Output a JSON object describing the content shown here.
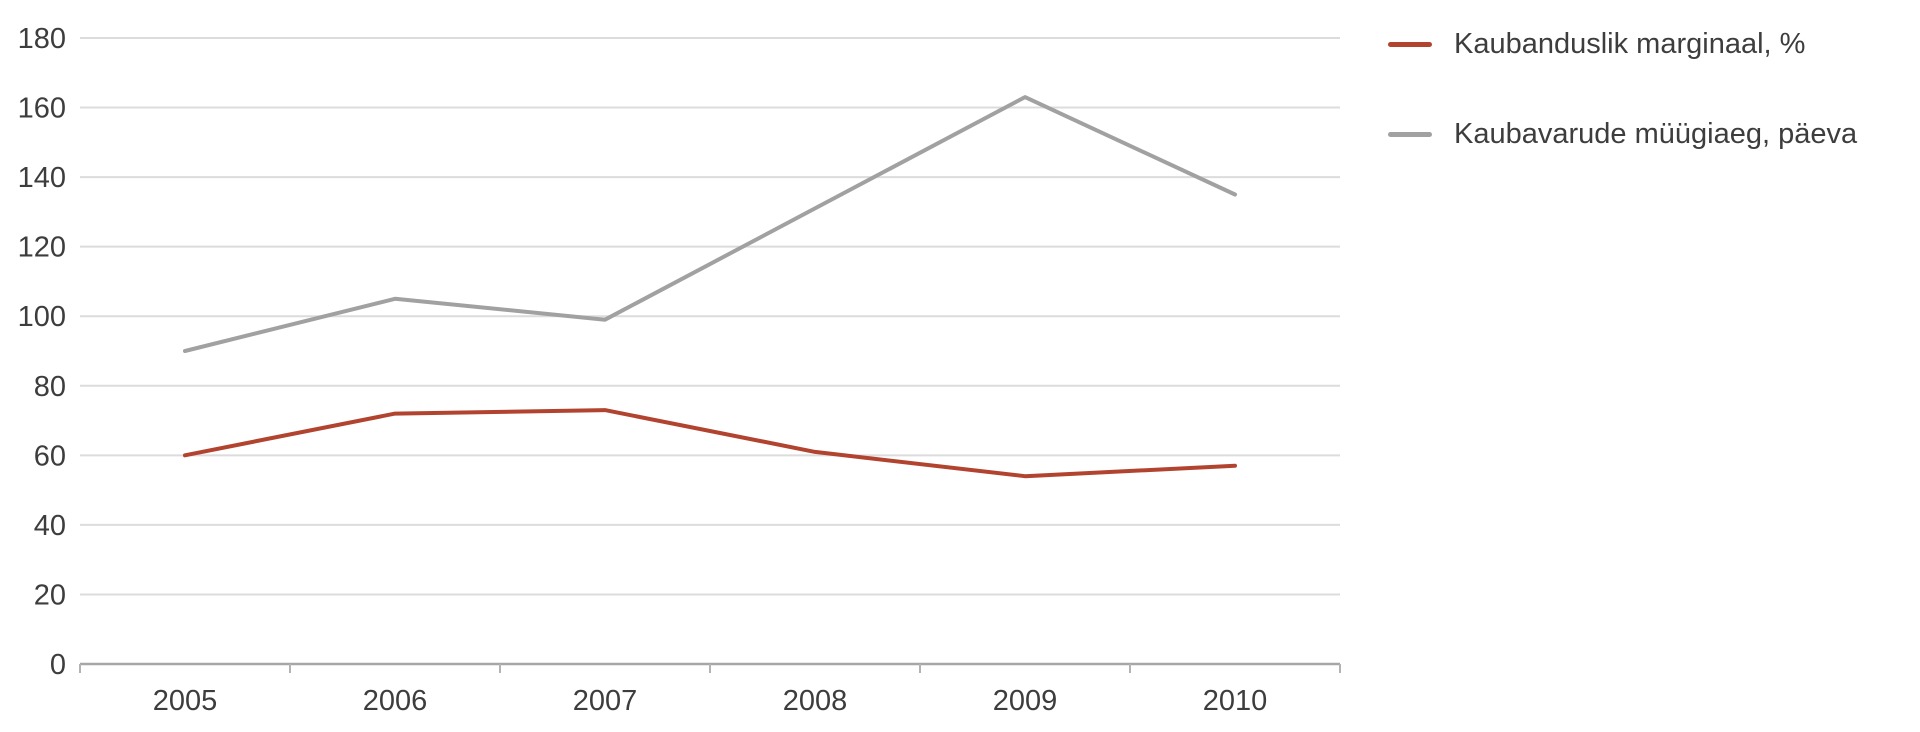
{
  "chart_data": {
    "type": "line",
    "categories": [
      "2005",
      "2006",
      "2007",
      "2008",
      "2009",
      "2010"
    ],
    "series": [
      {
        "name": "Kaubanduslik marginaal, %",
        "color": "#b2432f",
        "values": [
          60,
          72,
          73,
          61,
          54,
          57
        ]
      },
      {
        "name": "Kaubavarude müügiaeg, päeva",
        "color": "#a1a1a1",
        "values": [
          90,
          105,
          99,
          131,
          163,
          135
        ]
      }
    ],
    "title": "",
    "xlabel": "",
    "ylabel": "",
    "ylim": [
      0,
      180
    ],
    "ytick_step": 20,
    "ytick_labels": [
      "0",
      "20",
      "40",
      "60",
      "80",
      "100",
      "120",
      "140",
      "160",
      "180"
    ],
    "grid": true,
    "legend_position": "top-right",
    "colors": {
      "grid": "#dcdcdc",
      "axis": "#a6a6a6",
      "tick": "#b3b3b3",
      "text": "#3d3d3d",
      "background": "#ffffff"
    }
  }
}
